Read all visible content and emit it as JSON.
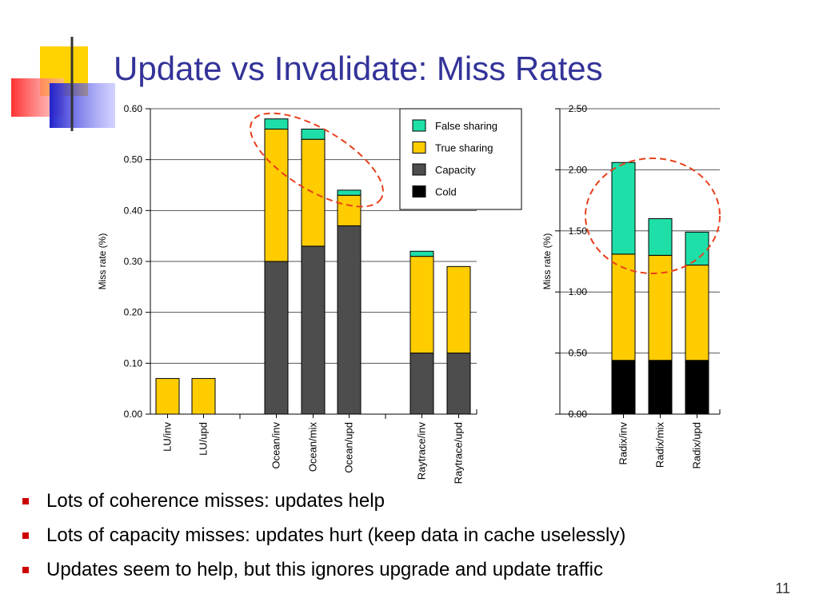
{
  "slide": {
    "title": "Update vs Invalidate: Miss Rates",
    "number": "11",
    "bullets": [
      "Lots of coherence misses: updates help",
      "Lots of capacity misses: updates hurt (keep data in cache uselessly)",
      "Updates seem to help, but this ignores upgrade and update traffic"
    ],
    "colors": {
      "title": "#333399",
      "bullet": "#cc0000",
      "highlight_ellipse": "#e8401c",
      "deco_yellow": "#ffd200",
      "deco_red": "#ff4040",
      "deco_blue": "#2b2bd6"
    }
  },
  "chart_data": [
    {
      "type": "bar",
      "stacked": true,
      "ylabel": "Miss rate (%)",
      "ylim": [
        0,
        0.6
      ],
      "yticks": [
        "0.00",
        "0.10",
        "0.20",
        "0.30",
        "0.40",
        "0.50",
        "0.60"
      ],
      "grid": true,
      "groups": [
        [
          "LU/inv",
          "LU/upd"
        ],
        [
          "Ocean/inv",
          "Ocean/mix",
          "Ocean/upd"
        ],
        [
          "Raytrace/inv",
          "Raytrace/upd"
        ]
      ],
      "categories": [
        "LU/inv",
        "LU/upd",
        "Ocean/inv",
        "Ocean/mix",
        "Ocean/upd",
        "Raytrace/inv",
        "Raytrace/upd"
      ],
      "series": [
        {
          "name": "Cold",
          "color": "#000000",
          "values": [
            0,
            0,
            0,
            0,
            0,
            0,
            0
          ]
        },
        {
          "name": "Capacity",
          "color": "#4d4d4d",
          "values": [
            0,
            0,
            0.3,
            0.33,
            0.37,
            0.12,
            0.12
          ]
        },
        {
          "name": "True sharing",
          "color": "#ffcc00",
          "values": [
            0.07,
            0.07,
            0.26,
            0.21,
            0.06,
            0.19,
            0.17
          ]
        },
        {
          "name": "False sharing",
          "color": "#1fdfa8",
          "values": [
            0,
            0,
            0.02,
            0.02,
            0.01,
            0.01,
            0
          ]
        }
      ],
      "legend": {
        "placement": "top-right",
        "entries": [
          {
            "label": "False sharing",
            "color": "#1fdfa8"
          },
          {
            "label": "True sharing",
            "color": "#ffcc00"
          },
          {
            "label": "Capacity",
            "color": "#4d4d4d"
          },
          {
            "label": "Cold",
            "color": "#000000"
          }
        ]
      }
    },
    {
      "type": "bar",
      "stacked": true,
      "ylabel": "Miss rate (%)",
      "ylim": [
        0,
        2.5
      ],
      "yticks": [
        "0.00",
        "0.50",
        "1.00",
        "1.50",
        "2.00",
        "2.50"
      ],
      "grid": true,
      "categories": [
        "Radix/inv",
        "Radix/mix",
        "Radix/upd"
      ],
      "series": [
        {
          "name": "Cold",
          "color": "#000000",
          "values": [
            0.44,
            0.44,
            0.44
          ]
        },
        {
          "name": "Capacity",
          "color": "#4d4d4d",
          "values": [
            0,
            0,
            0
          ]
        },
        {
          "name": "True sharing",
          "color": "#ffcc00",
          "values": [
            0.87,
            0.86,
            0.78
          ]
        },
        {
          "name": "False sharing",
          "color": "#1fdfa8",
          "values": [
            0.75,
            0.3,
            0.27
          ]
        }
      ]
    }
  ]
}
